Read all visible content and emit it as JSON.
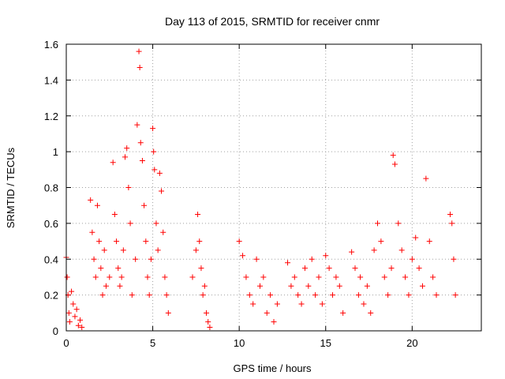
{
  "chart_data": {
    "type": "scatter",
    "title": "Day 113 of 2015, SRMTID for receiver cnmr",
    "xlabel": "GPS time / hours",
    "ylabel": "SRMTID / TECUs",
    "xlim": [
      0,
      24
    ],
    "ylim": [
      0,
      1.6
    ],
    "xticks": [
      0,
      5,
      10,
      15,
      20
    ],
    "xtick_labels": [
      "0",
      "5",
      "10",
      "15",
      "20"
    ],
    "yticks": [
      0,
      0.2,
      0.4,
      0.6,
      0.8,
      1.0,
      1.2,
      1.4,
      1.6
    ],
    "ytick_labels": [
      "0",
      "0.2",
      "0.4",
      "0.6",
      "0.8",
      "1",
      "1.2",
      "1.4",
      "1.6"
    ],
    "grid": true,
    "marker": "+",
    "marker_color": "#ff0000",
    "series": [
      {
        "name": "SRMTID",
        "x": [
          0.0,
          0.05,
          0.1,
          0.15,
          0.2,
          0.3,
          0.4,
          0.5,
          0.6,
          0.7,
          0.8,
          0.9,
          1.4,
          1.5,
          1.6,
          1.7,
          1.8,
          1.9,
          2.0,
          2.1,
          2.2,
          2.3,
          2.5,
          2.7,
          2.8,
          2.9,
          3.0,
          3.1,
          3.2,
          3.3,
          3.4,
          3.5,
          3.6,
          3.7,
          3.8,
          4.0,
          4.1,
          4.2,
          4.25,
          4.3,
          4.4,
          4.5,
          4.6,
          4.7,
          4.8,
          4.9,
          5.0,
          5.05,
          5.1,
          5.2,
          5.3,
          5.4,
          5.5,
          5.6,
          5.7,
          5.8,
          5.9,
          7.3,
          7.5,
          7.6,
          7.7,
          7.8,
          7.9,
          8.0,
          8.1,
          8.2,
          8.3,
          10.0,
          10.2,
          10.4,
          10.6,
          10.8,
          11.0,
          11.2,
          11.4,
          11.6,
          11.8,
          12.0,
          12.2,
          12.8,
          13.0,
          13.2,
          13.4,
          13.6,
          13.8,
          14.0,
          14.2,
          14.4,
          14.6,
          14.8,
          15.0,
          15.2,
          15.4,
          15.6,
          15.8,
          16.0,
          16.5,
          16.7,
          16.9,
          17.0,
          17.2,
          17.4,
          17.6,
          17.8,
          18.0,
          18.2,
          18.4,
          18.6,
          18.8,
          18.9,
          19.0,
          19.2,
          19.4,
          19.6,
          19.8,
          20.0,
          20.2,
          20.4,
          20.6,
          20.8,
          21.0,
          21.2,
          21.4,
          22.2,
          22.3,
          22.4,
          22.5
        ],
        "y": [
          0.41,
          0.3,
          0.2,
          0.1,
          0.05,
          0.22,
          0.15,
          0.08,
          0.12,
          0.03,
          0.06,
          0.02,
          0.73,
          0.55,
          0.4,
          0.3,
          0.7,
          0.5,
          0.35,
          0.2,
          0.45,
          0.25,
          0.3,
          0.94,
          0.65,
          0.5,
          0.35,
          0.25,
          0.3,
          0.45,
          0.97,
          1.02,
          0.8,
          0.6,
          0.2,
          0.4,
          1.15,
          1.56,
          1.47,
          1.05,
          0.95,
          0.7,
          0.5,
          0.3,
          0.2,
          0.4,
          1.13,
          1.0,
          0.9,
          0.6,
          0.45,
          0.88,
          0.78,
          0.55,
          0.3,
          0.2,
          0.1,
          0.3,
          0.45,
          0.65,
          0.5,
          0.35,
          0.2,
          0.25,
          0.1,
          0.05,
          0.02,
          0.5,
          0.42,
          0.3,
          0.2,
          0.15,
          0.4,
          0.25,
          0.3,
          0.1,
          0.2,
          0.05,
          0.15,
          0.38,
          0.25,
          0.3,
          0.2,
          0.15,
          0.35,
          0.25,
          0.4,
          0.2,
          0.3,
          0.15,
          0.42,
          0.35,
          0.2,
          0.3,
          0.25,
          0.1,
          0.44,
          0.35,
          0.2,
          0.3,
          0.15,
          0.25,
          0.1,
          0.45,
          0.6,
          0.5,
          0.3,
          0.2,
          0.35,
          0.98,
          0.93,
          0.6,
          0.45,
          0.3,
          0.2,
          0.4,
          0.52,
          0.35,
          0.25,
          0.85,
          0.5,
          0.3,
          0.2,
          0.65,
          0.6,
          0.4,
          0.2
        ]
      }
    ]
  }
}
